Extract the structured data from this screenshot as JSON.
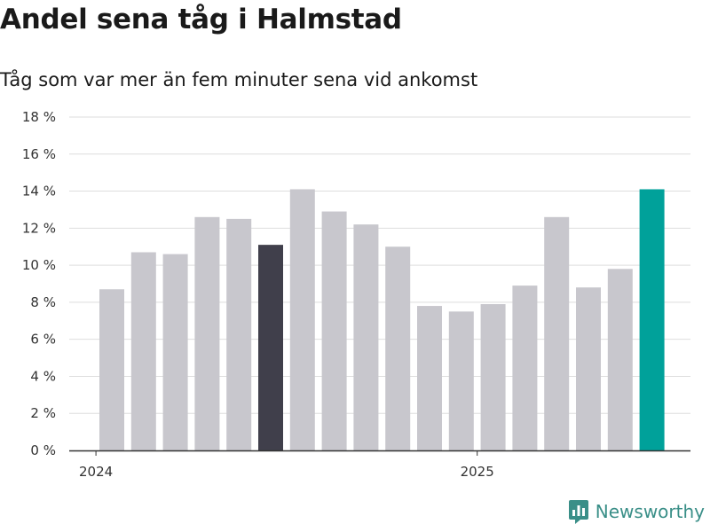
{
  "title": "Andel sena tåg i Halmstad",
  "subtitle": "Tåg som var mer än fem minuter sena vid ankomst",
  "brand": "Newsworthy",
  "colors": {
    "default_bar": "#c8c7cd",
    "highlight_bar": "#403f4b",
    "latest_bar": "#00a19a",
    "grid": "#dedede",
    "axis": "#333333"
  },
  "chart_data": {
    "type": "bar",
    "values": [
      8.7,
      10.7,
      10.6,
      12.6,
      12.5,
      11.1,
      14.1,
      12.9,
      12.2,
      11.0,
      7.8,
      7.5,
      7.9,
      8.9,
      12.6,
      8.8,
      9.8,
      14.1
    ],
    "highlight": [
      null,
      null,
      null,
      null,
      null,
      "dark",
      null,
      null,
      null,
      null,
      null,
      null,
      null,
      null,
      null,
      null,
      null,
      "latest"
    ],
    "ylim": [
      0,
      18
    ],
    "yticks": [
      0,
      2,
      4,
      6,
      8,
      10,
      12,
      14,
      16,
      18
    ],
    "ytick_suffix": " %",
    "xtick_labels": [
      {
        "label": "2024",
        "at_index": -0.5
      },
      {
        "label": "2025",
        "at_index": 11.5
      }
    ],
    "grid": true,
    "legend": "none"
  }
}
